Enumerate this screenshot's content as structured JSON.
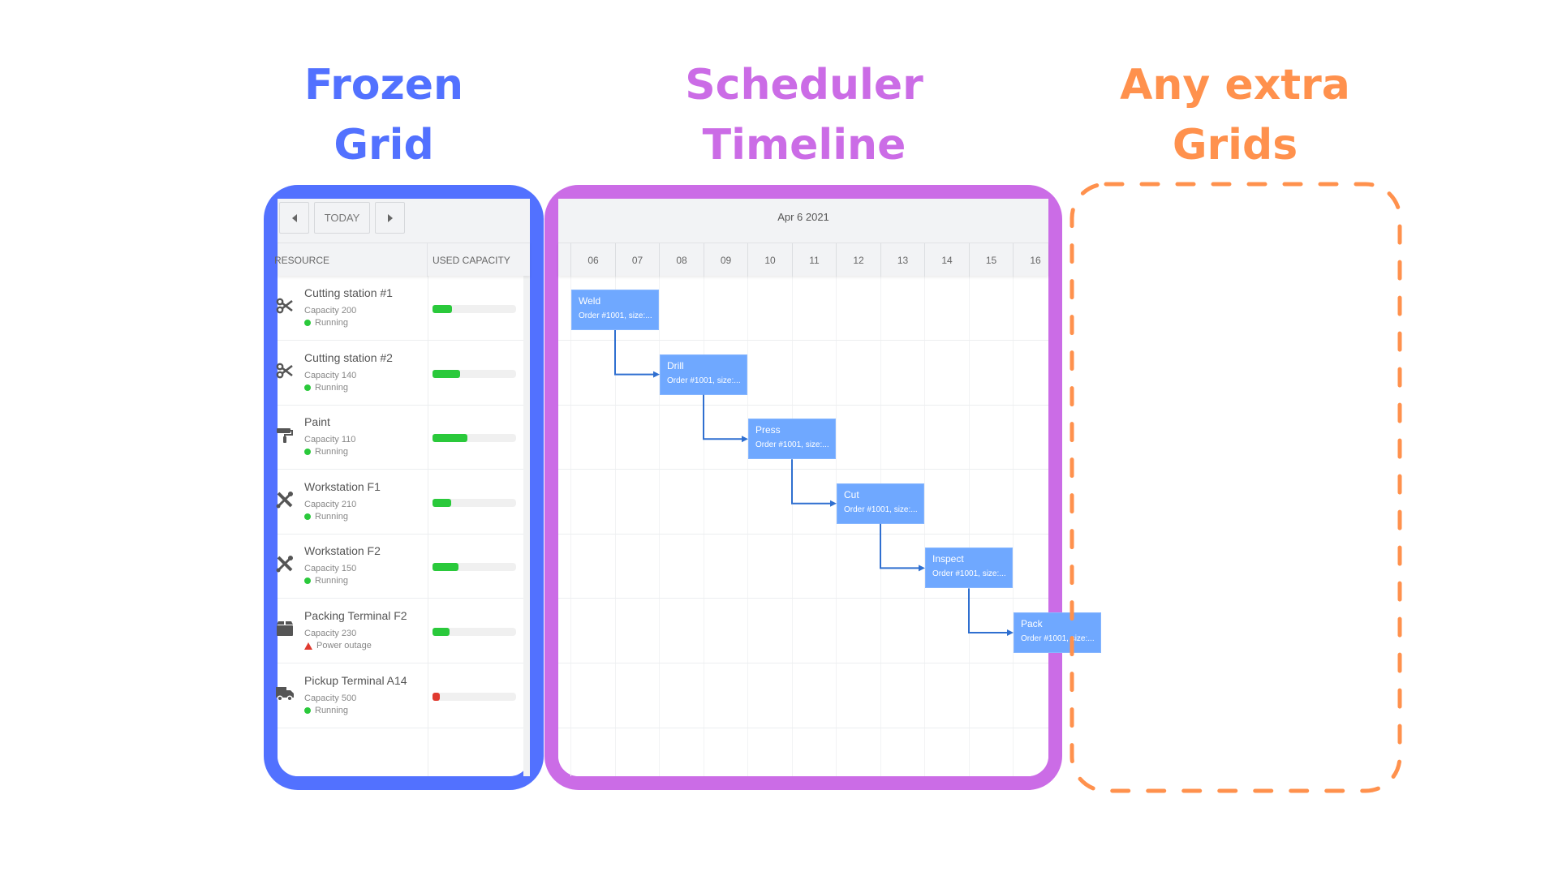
{
  "titles": {
    "frozen": [
      "Frozen",
      "Grid"
    ],
    "scheduler": [
      "Scheduler",
      "Timeline"
    ],
    "extra": [
      "Any extra",
      "Grids"
    ]
  },
  "colors": {
    "frozen": "#5271ff",
    "scheduler": "#cb6ce6",
    "extra": "#ff914d",
    "event": "#6fa8ff",
    "dependency": "#2f6fd0",
    "ok": "#2ac93b",
    "alert": "#e03a2f"
  },
  "toolbar": {
    "prev_icon": "caret-left-icon",
    "today_label": "TODAY",
    "next_icon": "caret-right-icon"
  },
  "grid": {
    "columns": [
      "RESOURCE",
      "USED CAPACITY"
    ],
    "rows": [
      {
        "name": "Cutting station #1",
        "capacity": "Capacity 200",
        "status": "Running",
        "status_type": "ok",
        "icon": "scissors-icon",
        "used": 0.23
      },
      {
        "name": "Cutting station #2",
        "capacity": "Capacity 140",
        "status": "Running",
        "status_type": "ok",
        "icon": "scissors-icon",
        "used": 0.33
      },
      {
        "name": "Paint",
        "capacity": "Capacity 110",
        "status": "Running",
        "status_type": "ok",
        "icon": "paint-roller-icon",
        "used": 0.42
      },
      {
        "name": "Workstation F1",
        "capacity": "Capacity 210",
        "status": "Running",
        "status_type": "ok",
        "icon": "tools-icon",
        "used": 0.22
      },
      {
        "name": "Workstation F2",
        "capacity": "Capacity 150",
        "status": "Running",
        "status_type": "ok",
        "icon": "tools-icon",
        "used": 0.31
      },
      {
        "name": "Packing Terminal F2",
        "capacity": "Capacity 230",
        "status": "Power outage",
        "status_type": "alert",
        "icon": "box-icon",
        "used": 0.2
      },
      {
        "name": "Pickup Terminal A14",
        "capacity": "Capacity 500",
        "status": "Running",
        "status_type": "ok",
        "icon": "truck-icon",
        "used": 0.09
      }
    ]
  },
  "timeline": {
    "date": "Apr 6 2021",
    "hours": [
      "06",
      "07",
      "08",
      "09",
      "10",
      "11",
      "12",
      "13",
      "14",
      "15",
      "16"
    ],
    "events": [
      {
        "name": "Weld",
        "detail": "Order #1001, size:...",
        "row": 0,
        "start": 6,
        "end": 8
      },
      {
        "name": "Drill",
        "detail": "Order #1001, size:...",
        "row": 1,
        "start": 8,
        "end": 10
      },
      {
        "name": "Press",
        "detail": "Order #1001, size:...",
        "row": 2,
        "start": 10,
        "end": 12
      },
      {
        "name": "Cut",
        "detail": "Order #1001, size:...",
        "row": 3,
        "start": 12,
        "end": 14
      },
      {
        "name": "Inspect",
        "detail": "Order #1001, size:...",
        "row": 4,
        "start": 14,
        "end": 16
      },
      {
        "name": "Pack",
        "detail": "Order #1001, size:...",
        "row": 5,
        "start": 16,
        "end": 18
      }
    ]
  }
}
